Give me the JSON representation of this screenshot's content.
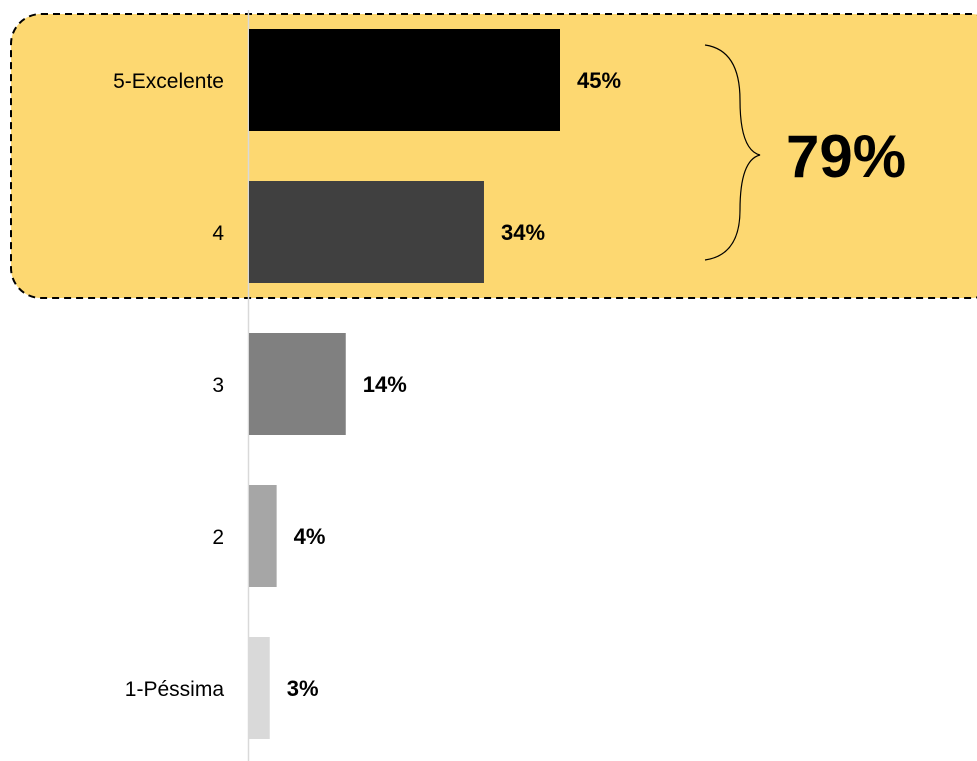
{
  "chart_data": {
    "type": "bar",
    "orientation": "horizontal",
    "categories": [
      "5-Excelente",
      "4",
      "3",
      "2",
      "1-Péssima"
    ],
    "values": [
      45,
      34,
      14,
      4,
      3
    ],
    "value_labels": [
      "45%",
      "34%",
      "14%",
      "4%",
      "3%"
    ],
    "bar_colors": [
      "#000000",
      "#404040",
      "#808080",
      "#a6a6a6",
      "#d9d9d9"
    ],
    "xlim": [
      0,
      100
    ],
    "grid": false,
    "highlight": {
      "categories": [
        "5-Excelente",
        "4"
      ],
      "total_label": "79%",
      "fill_color": "#fdd871",
      "border_style": "dashed"
    }
  }
}
